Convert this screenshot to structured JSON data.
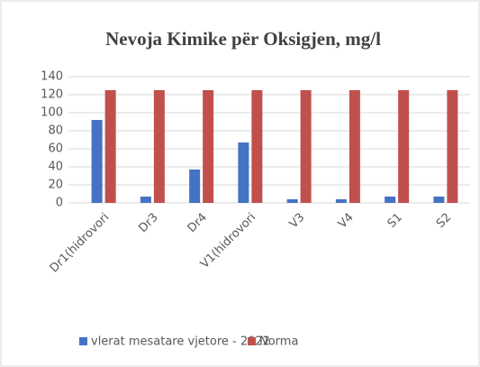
{
  "chart_data": {
    "type": "bar",
    "title": "Nevoja Kimike për Oksigjen, mg/l",
    "categories": [
      "Dr1(hidrovori",
      "Dr3",
      "Dr4",
      "V1(hidrovori",
      "V3",
      "V4",
      "S1",
      "S2"
    ],
    "series": [
      {
        "name": "vlerat mesatare vjetore - 2022",
        "color": "#4472c4",
        "values": [
          92,
          7,
          37,
          67,
          4,
          4,
          7,
          7
        ]
      },
      {
        "name": "Norma",
        "color": "#c0504d",
        "values": [
          125,
          125,
          125,
          125,
          125,
          125,
          125,
          125
        ]
      }
    ],
    "ylim": [
      0,
      140
    ],
    "yticks": [
      0,
      20,
      40,
      60,
      80,
      100,
      120,
      140
    ],
    "grid": true,
    "legend": "bottom"
  }
}
